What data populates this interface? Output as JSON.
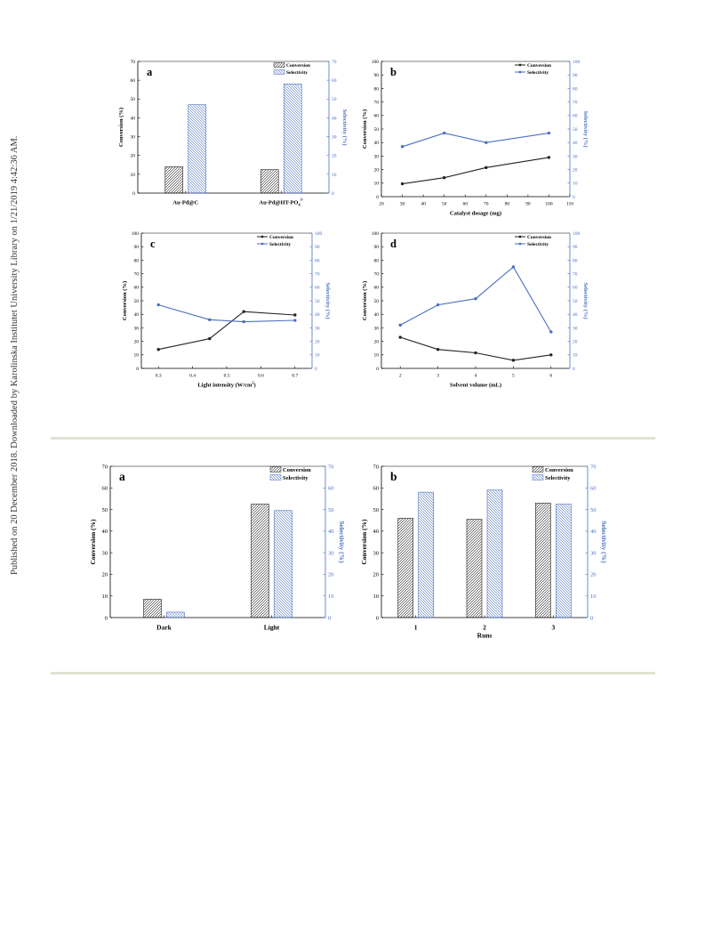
{
  "side_note": "Published on 20 December 2018. Downloaded by Karolinska Institutet University Library on 1/21/2019 4:42:36 AM.",
  "colors": {
    "conversion": "#222222",
    "selectivity": "#4a6fbf",
    "rule": "#e2e2d4"
  },
  "chart_data": [
    {
      "id": "fig1a",
      "panel_label": "a",
      "type": "bar",
      "categories": [
        "Au-Pd@C",
        "Au-Pd@HT-PO4 3-"
      ],
      "series": [
        {
          "name": "Conversion",
          "values": [
            14,
            12.5
          ]
        },
        {
          "name": "Selectivity",
          "values": [
            47,
            58
          ]
        }
      ],
      "ylabel": "Conversion (%)",
      "y2label": "Selectivity (%)",
      "xlabel": "",
      "ylim": [
        0,
        70
      ],
      "y2lim": [
        0,
        70
      ],
      "legend": "top-right",
      "grid": false
    },
    {
      "id": "fig1b",
      "panel_label": "b",
      "type": "line",
      "x": [
        30,
        50,
        70,
        100
      ],
      "series": [
        {
          "name": "Conversion",
          "values": [
            9.5,
            14,
            21.5,
            29
          ]
        },
        {
          "name": "Selectivity",
          "values": [
            37,
            47,
            40,
            47
          ]
        }
      ],
      "xlabel": "Catalyst dosage (mg)",
      "ylabel": "Conversion (%)",
      "y2label": "Selectivity (%)",
      "xlim": [
        20,
        110
      ],
      "ylim": [
        0,
        100
      ],
      "y2lim": [
        0,
        100
      ],
      "legend": "top-right",
      "grid": false
    },
    {
      "id": "fig1c",
      "panel_label": "c",
      "type": "line",
      "x": [
        0.3,
        0.45,
        0.55,
        0.7
      ],
      "series": [
        {
          "name": "Conversion",
          "values": [
            14,
            22,
            42,
            39.5
          ]
        },
        {
          "name": "Selectivity",
          "values": [
            47,
            36,
            34.5,
            35.5
          ]
        }
      ],
      "xlabel": "Light intensity (W/cm2)",
      "ylabel": "Conversion (%)",
      "y2label": "Selectivity (%)",
      "xlim": [
        0.25,
        0.75
      ],
      "ylim": [
        0,
        100
      ],
      "y2lim": [
        0,
        100
      ],
      "legend": "top-right",
      "grid": false
    },
    {
      "id": "fig1d",
      "panel_label": "d",
      "type": "line",
      "x": [
        2,
        3,
        4,
        5,
        6
      ],
      "series": [
        {
          "name": "Conversion",
          "values": [
            23,
            14,
            11.5,
            6,
            10
          ]
        },
        {
          "name": "Selectivity",
          "values": [
            32,
            47,
            51.5,
            75,
            27
          ]
        }
      ],
      "xlabel": "Solvent volume (mL)",
      "ylabel": "Conversion (%)",
      "y2label": "Selectivity (%)",
      "xlim": [
        1.5,
        6.5
      ],
      "ylim": [
        0,
        100
      ],
      "y2lim": [
        0,
        100
      ],
      "legend": "top-right",
      "grid": false
    },
    {
      "id": "fig2a",
      "panel_label": "a",
      "type": "bar",
      "categories": [
        "Dark",
        "Light"
      ],
      "series": [
        {
          "name": "Conversion",
          "values": [
            8.5,
            52.5
          ]
        },
        {
          "name": "Selectivity",
          "values": [
            2.5,
            49.5
          ]
        }
      ],
      "xlabel": "",
      "ylabel": "Conversion (%)",
      "y2label": "Selectivity (%)",
      "ylim": [
        0,
        70
      ],
      "y2lim": [
        0,
        70
      ],
      "legend": "top-right",
      "grid": false
    },
    {
      "id": "fig2b",
      "panel_label": "b",
      "type": "bar",
      "categories": [
        "1",
        "2",
        "3"
      ],
      "series": [
        {
          "name": "Conversion",
          "values": [
            46,
            45.5,
            53
          ]
        },
        {
          "name": "Selectivity",
          "values": [
            58,
            59,
            52.5
          ]
        }
      ],
      "xlabel": "Runs",
      "ylabel": "Conversion (%)",
      "y2label": "Selectivity (%)",
      "ylim": [
        0,
        70
      ],
      "y2lim": [
        0,
        70
      ],
      "legend": "top-right",
      "grid": false
    }
  ]
}
